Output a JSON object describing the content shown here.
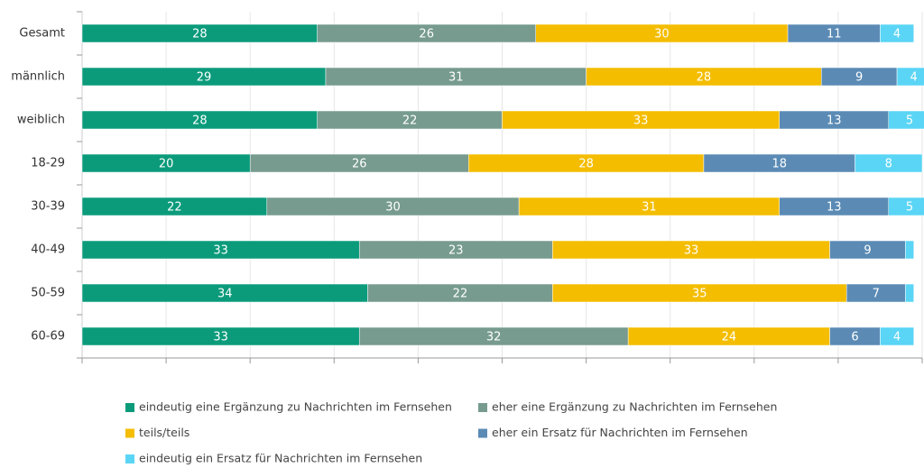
{
  "chart_data": {
    "type": "stacked-bar-horizontal",
    "categories": [
      "Gesamt",
      "männlich",
      "weiblich",
      "18-29",
      "30-39",
      "40-49",
      "50-59",
      "60-69"
    ],
    "series": [
      {
        "name": "eindeutig eine Ergänzung zu Nachrichten im Fernsehen",
        "color": "#0b9b7b",
        "values": [
          28,
          29,
          28,
          20,
          22,
          33,
          34,
          33
        ]
      },
      {
        "name": "eher eine Ergänzung zu Nachrichten im Fernsehen",
        "color": "#779b8f",
        "values": [
          26,
          31,
          22,
          26,
          30,
          23,
          22,
          32
        ]
      },
      {
        "name": "teils/teils",
        "color": "#f4bd00",
        "values": [
          30,
          28,
          33,
          28,
          31,
          33,
          35,
          24
        ]
      },
      {
        "name": "eher ein Ersatz für Nachrichten im Fernsehen",
        "color": "#5b8bb5",
        "values": [
          11,
          9,
          13,
          18,
          13,
          9,
          7,
          6
        ]
      },
      {
        "name": "eindeutig ein Ersatz für Nachrichten im Fernsehen",
        "color": "#5ad5f5",
        "values": [
          4,
          4,
          5,
          8,
          5,
          1,
          1,
          4
        ]
      }
    ],
    "xlim": [
      0,
      100
    ],
    "xticks": [
      0,
      10,
      20,
      30,
      40,
      50,
      60,
      70,
      80,
      90,
      100
    ],
    "grid": true
  }
}
